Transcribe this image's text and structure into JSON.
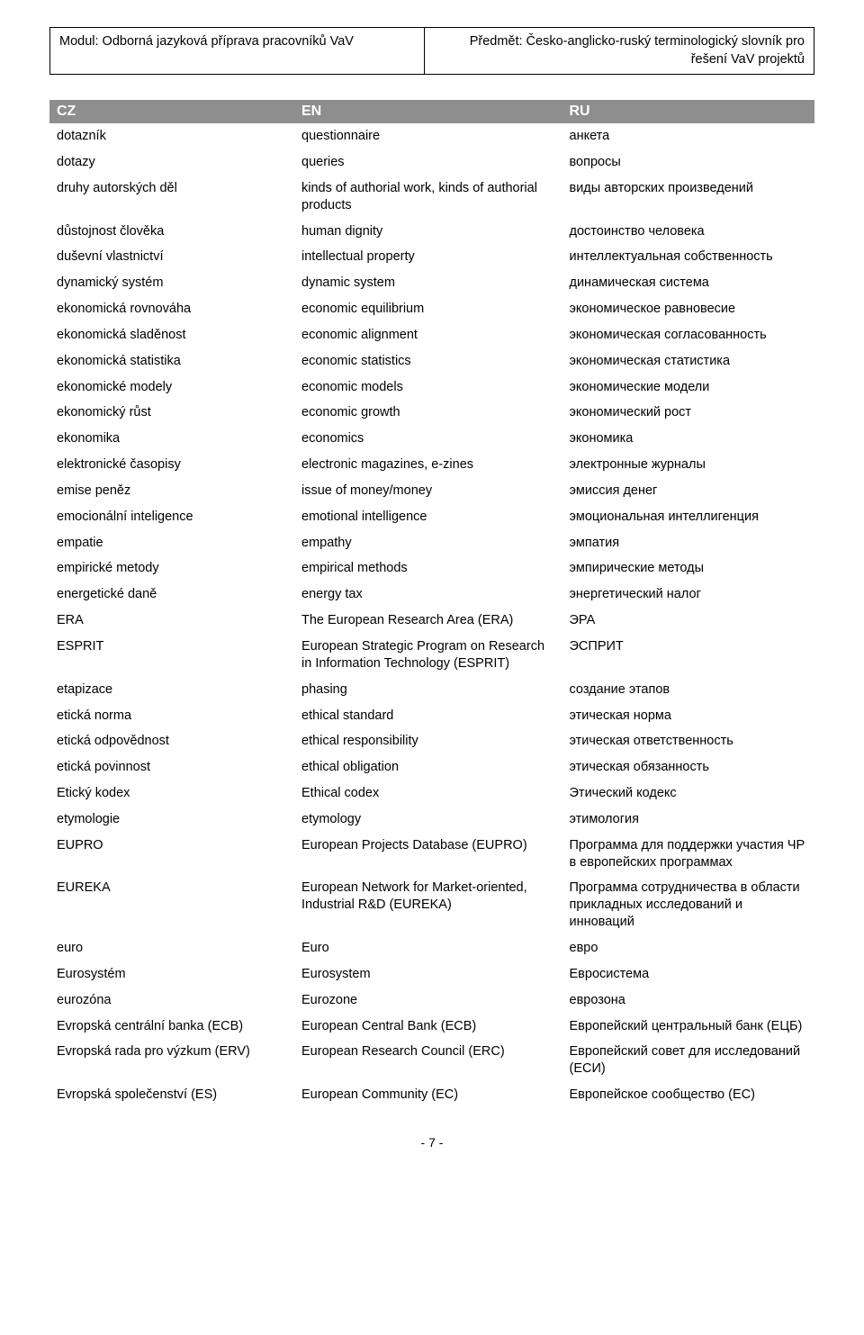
{
  "header": {
    "left": "Modul: Odborná jazyková příprava pracovníků VaV",
    "right": "Předmět: Česko-anglicko-ruský terminologický slovník pro řešení VaV projektů"
  },
  "columns": {
    "cz": "CZ",
    "en": "EN",
    "ru": "RU"
  },
  "rows": [
    {
      "cz": "dotazník",
      "en": "questionnaire",
      "ru": "анкета"
    },
    {
      "cz": "dotazy",
      "en": "queries",
      "ru": "вопросы"
    },
    {
      "cz": "druhy autorských děl",
      "en": "kinds of authorial work, kinds of authorial products",
      "ru": "виды авторских произведений"
    },
    {
      "cz": "důstojnost člověka",
      "en": "human dignity",
      "ru": "достоинство человека"
    },
    {
      "cz": "duševní vlastnictví",
      "en": "intellectual property",
      "ru": "интеллектуальная собственность"
    },
    {
      "cz": "dynamický systém",
      "en": "dynamic system",
      "ru": "динамическая система"
    },
    {
      "cz": "ekonomická rovnováha",
      "en": "economic equilibrium",
      "ru": "экономическое равновесие"
    },
    {
      "cz": "ekonomická sladěnost",
      "en": "economic alignment",
      "ru": "экономическая согласованность"
    },
    {
      "cz": "ekonomická statistika",
      "en": "economic statistics",
      "ru": "экономическая статистика"
    },
    {
      "cz": "ekonomické modely",
      "en": "economic models",
      "ru": "экономические модели"
    },
    {
      "cz": "ekonomický růst",
      "en": "economic growth",
      "ru": "экономический рост"
    },
    {
      "cz": "ekonomika",
      "en": "economics",
      "ru": "экономика"
    },
    {
      "cz": "elektronické časopisy",
      "en": "electronic magazines, e-zines",
      "ru": "электронные журналы"
    },
    {
      "cz": "emise peněz",
      "en": "issue of money/money",
      "ru": "эмиссия денег"
    },
    {
      "cz": "emocionální inteligence",
      "en": "emotional intelligence",
      "ru": "эмоциональная интеллигенция"
    },
    {
      "cz": "empatie",
      "en": "empathy",
      "ru": "эмпатия"
    },
    {
      "cz": "empirické metody",
      "en": "empirical methods",
      "ru": "эмпирические методы"
    },
    {
      "cz": "energetické daně",
      "en": "energy tax",
      "ru": "энергетический налог"
    },
    {
      "cz": "ERA",
      "en": "The European Research Area (ERA)",
      "ru": "ЭРА"
    },
    {
      "cz": "ESPRIT",
      "en": "European Strategic Program on Research in Information Technology (ESPRIT)",
      "ru": "ЭСПРИТ"
    },
    {
      "cz": "etapizace",
      "en": "phasing",
      "ru": "создание этапов"
    },
    {
      "cz": "etická norma",
      "en": "ethical standard",
      "ru": "этическая норма"
    },
    {
      "cz": "etická odpovědnost",
      "en": "ethical responsibility",
      "ru": "этическая ответственность"
    },
    {
      "cz": "etická povinnost",
      "en": "ethical obligation",
      "ru": "этическая обязанность"
    },
    {
      "cz": "Etický kodex",
      "en": "Ethical codex",
      "ru": "Этический кодекс"
    },
    {
      "cz": "etymologie",
      "en": "etymology",
      "ru": "этимология"
    },
    {
      "cz": "EUPRO",
      "en": "European Projects Database (EUPRO)",
      "ru": "Программа для поддержки участия ЧР в европейских программах"
    },
    {
      "cz": "EUREKA",
      "en": "European Network for Market-oriented, Industrial R&D (EUREKA)",
      "ru": "Программа сотрудничества в области прикладных исследований и инноваций"
    },
    {
      "cz": "euro",
      "en": "Euro",
      "ru": "евро"
    },
    {
      "cz": "Eurosystém",
      "en": "Eurosystem",
      "ru": "Евросистема"
    },
    {
      "cz": "eurozóna",
      "en": "Eurozone",
      "ru": "еврозона"
    },
    {
      "cz": "Evropská centrální banka (ECB)",
      "en": "European Central Bank (ECB)",
      "ru": "Европейский центральный банк (ЕЦБ)"
    },
    {
      "cz": "Evropská rada pro výzkum (ERV)",
      "en": "European Research Council (ERC)",
      "ru": "Европейский совет для исследований (ЕСИ)"
    },
    {
      "cz": "Evropská společenství (ES)",
      "en": "European Community (EC)",
      "ru": "Европейское  сообщество (ЕС)"
    }
  ],
  "page": "- 7 -"
}
